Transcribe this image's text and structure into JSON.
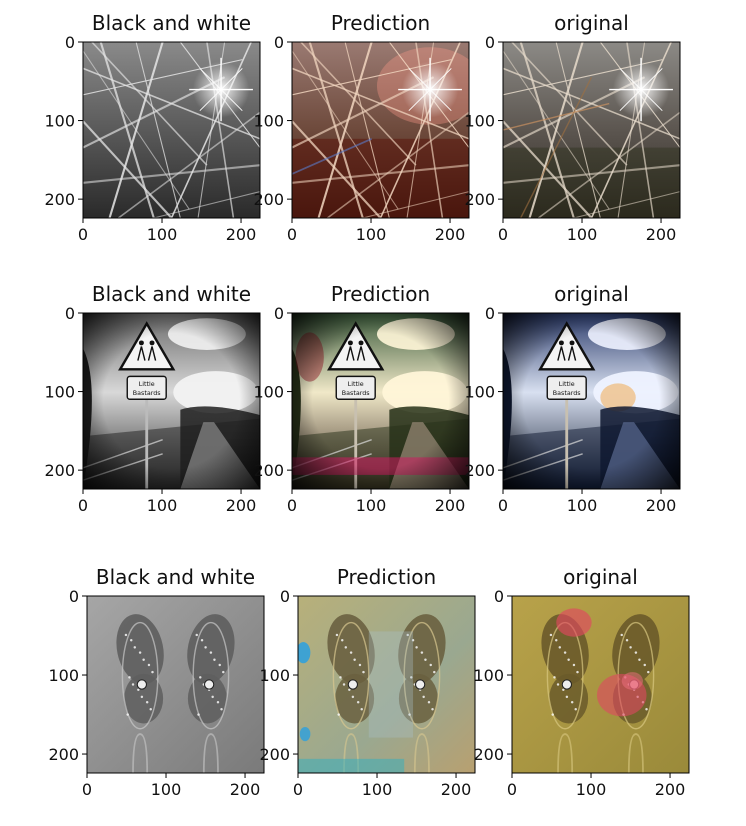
{
  "chart_data": [
    {
      "type": "image-grid",
      "rows": [
        {
          "scene": "grass-sun",
          "panels": [
            {
              "title": "Black and white",
              "mode": "gray"
            },
            {
              "title": "Prediction",
              "mode": "prediction"
            },
            {
              "title": "original",
              "mode": "original"
            }
          ]
        },
        {
          "scene": "road-sign",
          "panels": [
            {
              "title": "Black and white",
              "mode": "gray"
            },
            {
              "title": "Prediction",
              "mode": "prediction"
            },
            {
              "title": "original",
              "mode": "original"
            }
          ]
        },
        {
          "scene": "butterfly",
          "panels": [
            {
              "title": "Black and white",
              "mode": "gray"
            },
            {
              "title": "Prediction",
              "mode": "prediction"
            },
            {
              "title": "original",
              "mode": "original"
            }
          ]
        }
      ],
      "x_ticks": [
        0,
        100,
        200
      ],
      "y_ticks": [
        0,
        100,
        200
      ],
      "xlim": [
        0,
        224
      ],
      "ylim": [
        224,
        0
      ],
      "sign_text": [
        "Little",
        "Bastards"
      ]
    }
  ]
}
